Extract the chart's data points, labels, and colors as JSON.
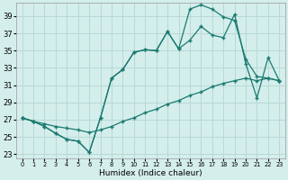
{
  "xlabel": "Humidex (Indice chaleur)",
  "bg_color": "#d4eeec",
  "grid_color": "#b8d8d6",
  "line_color": "#1a7a70",
  "xlim": [
    -0.5,
    23.5
  ],
  "ylim": [
    22.5,
    40.5
  ],
  "xticks": [
    0,
    1,
    2,
    3,
    4,
    5,
    6,
    7,
    8,
    9,
    10,
    11,
    12,
    13,
    14,
    15,
    16,
    17,
    18,
    19,
    20,
    21,
    22,
    23
  ],
  "yticks": [
    23,
    25,
    27,
    29,
    31,
    33,
    35,
    37,
    39
  ],
  "line1_x": [
    0,
    1,
    2,
    3,
    4,
    5,
    6,
    7,
    8,
    9,
    10,
    11,
    12,
    13,
    14,
    15,
    16,
    17,
    18,
    19,
    20,
    21,
    22,
    23
  ],
  "line1_y": [
    27.2,
    26.8,
    26.2,
    25.4,
    24.7,
    24.5,
    23.2,
    27.2,
    31.8,
    32.8,
    34.8,
    35.1,
    35.0,
    37.2,
    35.2,
    39.8,
    40.3,
    39.8,
    38.9,
    38.5,
    34.0,
    32.0,
    31.8,
    31.5
  ],
  "line2_x": [
    0,
    1,
    2,
    3,
    4,
    5,
    6,
    7,
    8,
    9,
    10,
    11,
    12,
    13,
    14,
    15,
    16,
    17,
    18,
    19,
    20,
    21,
    22,
    23
  ],
  "line2_y": [
    27.2,
    26.8,
    26.2,
    25.4,
    24.7,
    24.5,
    23.2,
    27.2,
    31.8,
    32.8,
    34.8,
    35.1,
    35.0,
    37.2,
    35.2,
    36.2,
    37.8,
    36.8,
    36.5,
    39.2,
    33.5,
    29.5,
    34.2,
    31.5
  ],
  "line3_x": [
    0,
    1,
    2,
    3,
    4,
    5,
    6,
    7,
    8,
    9,
    10,
    11,
    12,
    13,
    14,
    15,
    16,
    17,
    18,
    19,
    20,
    21,
    22,
    23
  ],
  "line3_y": [
    27.2,
    26.8,
    26.5,
    26.2,
    26.0,
    25.8,
    25.5,
    25.8,
    26.2,
    26.8,
    27.2,
    27.8,
    28.2,
    28.8,
    29.2,
    29.8,
    30.2,
    30.8,
    31.2,
    31.5,
    31.8,
    31.5,
    31.8,
    31.5
  ]
}
